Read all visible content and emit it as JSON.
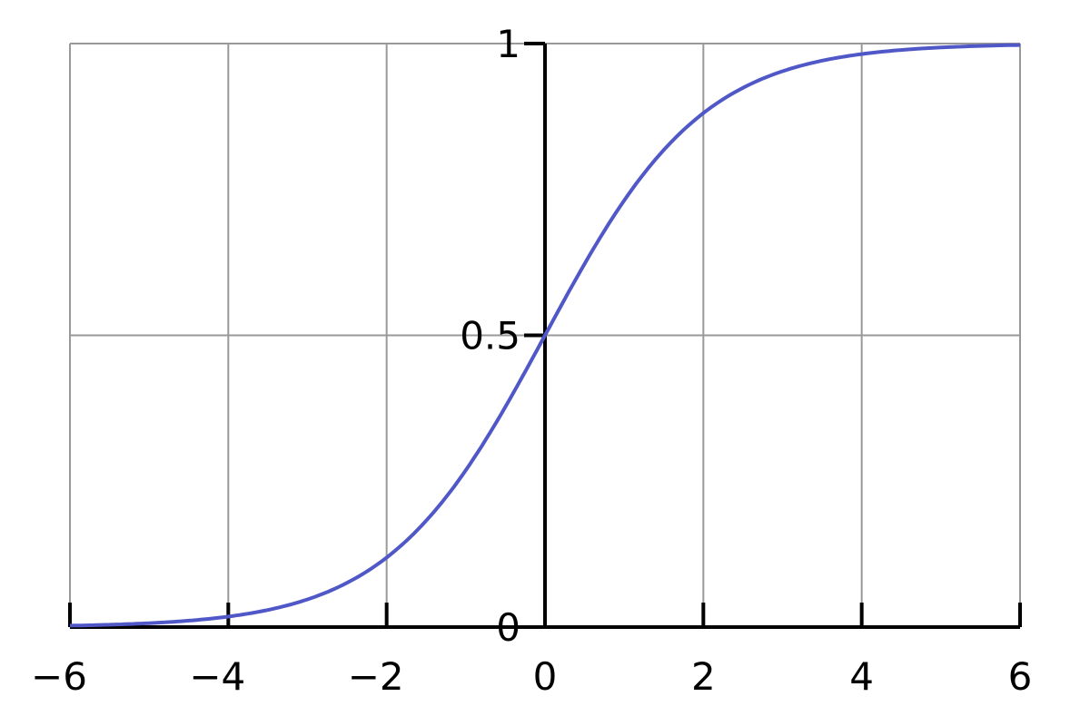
{
  "chart_data": {
    "type": "line",
    "title": "",
    "xlabel": "",
    "ylabel": "",
    "xlim": [
      -6,
      6
    ],
    "ylim": [
      0,
      1
    ],
    "grid": true,
    "x_ticks": [
      -6,
      -4,
      -2,
      0,
      2,
      4,
      6
    ],
    "x_tick_labels": [
      "−6",
      "−4",
      "−2",
      "0",
      "2",
      "4",
      "6"
    ],
    "y_ticks": [
      0,
      0.5,
      1
    ],
    "y_tick_labels": [
      "0",
      "0.5",
      "1"
    ],
    "series": [
      {
        "function": "1/(1+exp(-x))",
        "color": "#5058c8",
        "x": [
          -6,
          -5.5,
          -5,
          -4.5,
          -4,
          -3.5,
          -3,
          -2.5,
          -2,
          -1.5,
          -1,
          -0.5,
          0,
          0.5,
          1,
          1.5,
          2,
          2.5,
          3,
          3.5,
          4,
          4.5,
          5,
          5.5,
          6
        ],
        "y": [
          0.0025,
          0.0041,
          0.0067,
          0.011,
          0.018,
          0.0293,
          0.0474,
          0.0759,
          0.1192,
          0.1824,
          0.2689,
          0.3775,
          0.5,
          0.6225,
          0.7311,
          0.8176,
          0.8808,
          0.9241,
          0.9526,
          0.9707,
          0.982,
          0.989,
          0.9933,
          0.9959,
          0.9975
        ]
      }
    ],
    "colors": {
      "grid": "#999999",
      "axis": "#000000",
      "curve": "#5058c8"
    }
  }
}
